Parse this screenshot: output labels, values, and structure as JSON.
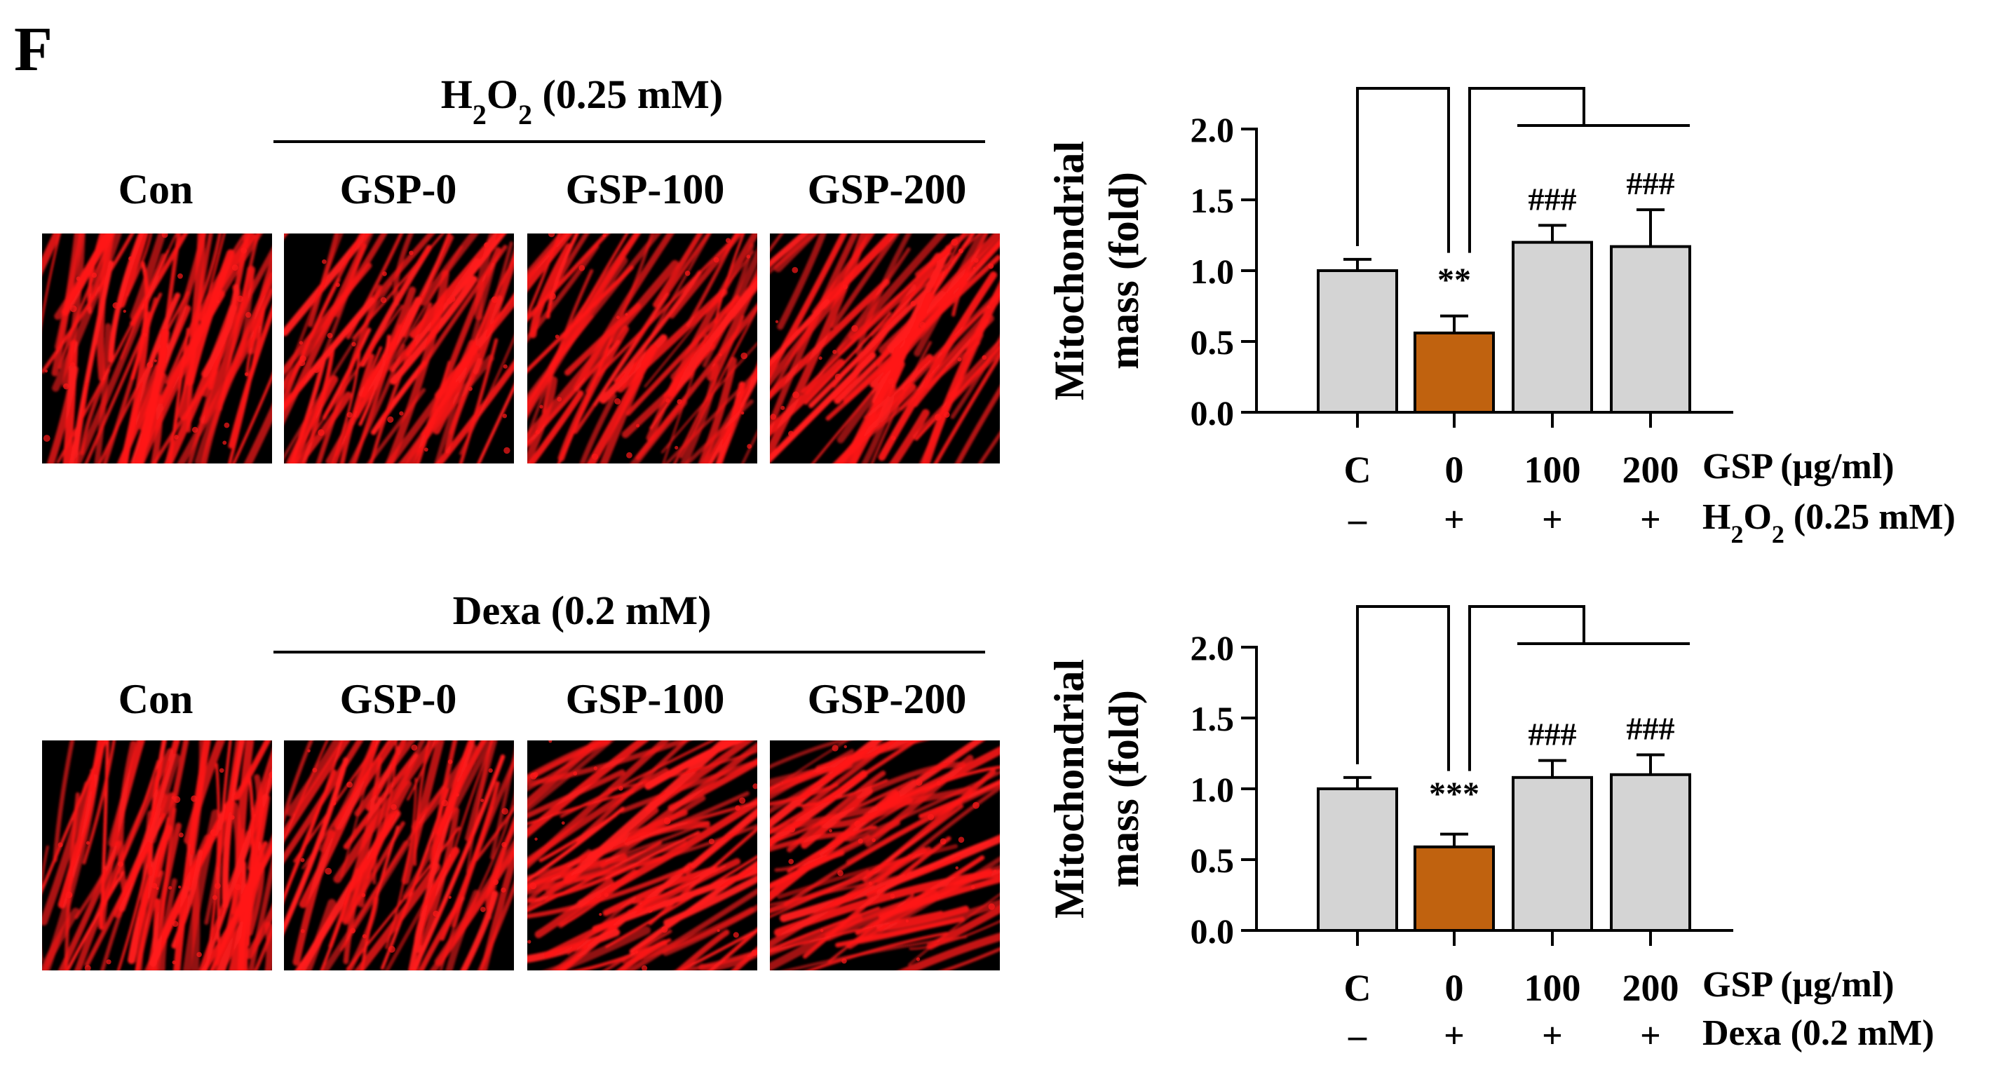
{
  "panel_letter": "F",
  "colors": {
    "control_bar": "#d4d4d4",
    "highlight_bar": "#c0620f",
    "fluorescence": "#ff1a1a",
    "background": "#000000"
  },
  "rows": [
    {
      "treatment_header": {
        "main": "H",
        "sub1": "2",
        "mid": "O",
        "sub2": "2",
        "tail": " (0.25 mM)"
      },
      "image_labels": [
        "Con",
        "GSP-0",
        "GSP-100",
        "GSP-200"
      ]
    },
    {
      "treatment_header": {
        "main": "Dexa (0.2 mM)",
        "sub1": "",
        "mid": "",
        "sub2": "",
        "tail": ""
      },
      "image_labels": [
        "Con",
        "GSP-0",
        "GSP-100",
        "GSP-200"
      ]
    }
  ],
  "chart_data": [
    {
      "type": "bar",
      "ylabel_line1": "Mitochondrial",
      "ylabel_line2": "mass (fold)",
      "ylim": [
        0,
        2.0
      ],
      "yticks": [
        "0.0",
        "0.5",
        "1.0",
        "1.5",
        "2.0"
      ],
      "categories": [
        "C",
        "0",
        "100",
        "200"
      ],
      "values": [
        1.0,
        0.56,
        1.2,
        1.17
      ],
      "errors": [
        0.08,
        0.12,
        0.12,
        0.26
      ],
      "bar_colors": [
        "#d4d4d4",
        "#c0620f",
        "#d4d4d4",
        "#d4d4d4"
      ],
      "annotations": [
        "",
        "**",
        "###",
        "###"
      ],
      "factor1_name": "GSP (μg/ml)",
      "factor2_signs": [
        "–",
        "+",
        "+",
        "+"
      ],
      "factor2_name": {
        "main": "H",
        "sub1": "2",
        "mid": "O",
        "sub2": "2",
        "tail": " (0.25 mM)"
      }
    },
    {
      "type": "bar",
      "ylabel_line1": "Mitochondrial",
      "ylabel_line2": "mass (fold)",
      "ylim": [
        0,
        2.0
      ],
      "yticks": [
        "0.0",
        "0.5",
        "1.0",
        "1.5",
        "2.0"
      ],
      "categories": [
        "C",
        "0",
        "100",
        "200"
      ],
      "values": [
        1.0,
        0.59,
        1.08,
        1.1
      ],
      "errors": [
        0.08,
        0.09,
        0.12,
        0.14
      ],
      "bar_colors": [
        "#d4d4d4",
        "#c0620f",
        "#d4d4d4",
        "#d4d4d4"
      ],
      "annotations": [
        "",
        "***",
        "###",
        "###"
      ],
      "factor1_name": "GSP (μg/ml)",
      "factor2_signs": [
        "–",
        "+",
        "+",
        "+"
      ],
      "factor2_name": {
        "main": "Dexa (0.2 mM)",
        "sub1": "",
        "mid": "",
        "sub2": "",
        "tail": ""
      }
    }
  ]
}
